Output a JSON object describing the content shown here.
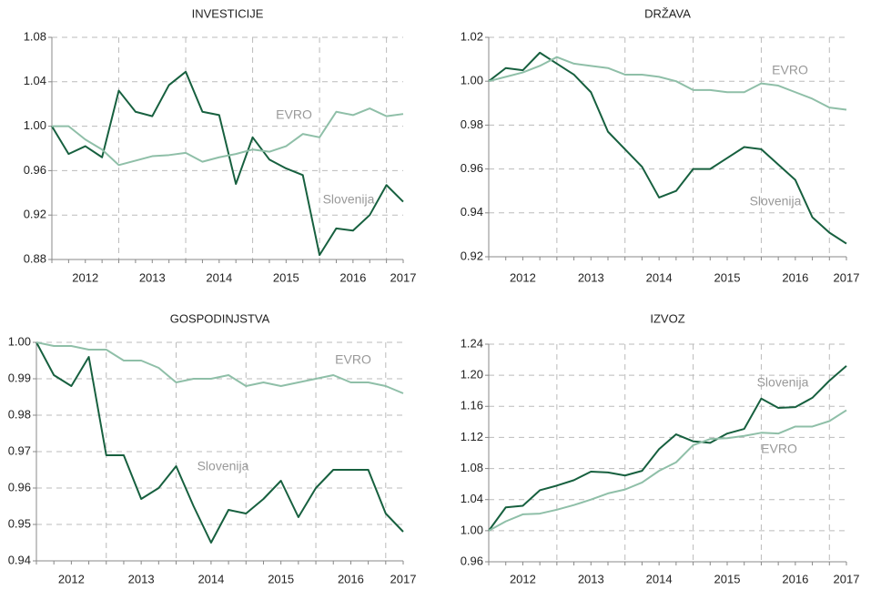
{
  "chart_data": [
    {
      "type": "line",
      "title": "INVESTICIJE",
      "categories": [
        null,
        null,
        "2012",
        null,
        null,
        null,
        "2013",
        null,
        null,
        null,
        "2014",
        null,
        null,
        null,
        "2015",
        null,
        null,
        null,
        "2016",
        null,
        null,
        "2017"
      ],
      "series": [
        {
          "name": "Slovenija",
          "color": "#17603f",
          "values": [
            1.0,
            0.975,
            0.982,
            0.972,
            1.032,
            1.013,
            1.009,
            1.037,
            1.049,
            1.013,
            1.01,
            0.948,
            0.99,
            0.97,
            0.962,
            0.956,
            0.884,
            0.908,
            0.906,
            0.92,
            0.947,
            0.932
          ]
        },
        {
          "name": "EVRO",
          "color": "#8fbfa8",
          "values": [
            1.0,
            1.0,
            0.988,
            0.979,
            0.965,
            0.969,
            0.973,
            0.974,
            0.976,
            0.968,
            0.972,
            0.975,
            0.979,
            0.977,
            0.982,
            0.993,
            0.99,
            1.013,
            1.01,
            1.016,
            1.009,
            1.011
          ]
        }
      ],
      "ylim": [
        0.88,
        1.08
      ],
      "yticks": [
        0.88,
        0.92,
        0.96,
        {
          "value": 1.0,
          "label": "1.00"
        },
        1.04,
        1.08
      ],
      "grid": true
    },
    {
      "type": "line",
      "title": "DRŽAVA",
      "categories": [
        null,
        null,
        "2012",
        null,
        null,
        null,
        "2013",
        null,
        null,
        null,
        "2014",
        null,
        null,
        null,
        "2015",
        null,
        null,
        null,
        "2016",
        null,
        null,
        "2017"
      ],
      "series": [
        {
          "name": "Slovenija",
          "color": "#17603f",
          "values": [
            1.0,
            1.006,
            1.005,
            1.013,
            1.008,
            1.003,
            0.995,
            0.977,
            0.969,
            0.961,
            0.947,
            0.95,
            0.96,
            0.96,
            0.965,
            0.97,
            0.969,
            0.962,
            0.955,
            0.938,
            0.931,
            0.926
          ]
        },
        {
          "name": "EVRO",
          "color": "#8fbfa8",
          "values": [
            1.0,
            1.002,
            1.004,
            1.007,
            1.011,
            1.008,
            1.007,
            1.006,
            1.003,
            1.003,
            1.002,
            1.0,
            0.996,
            0.996,
            0.995,
            0.995,
            0.999,
            0.998,
            0.995,
            0.992,
            0.988,
            0.987
          ]
        }
      ],
      "ylim": [
        0.92,
        1.02
      ],
      "yticks": [
        0.92,
        0.94,
        0.96,
        0.98,
        {
          "value": 1.0,
          "label": "1.00"
        },
        1.02
      ],
      "grid": true
    },
    {
      "type": "line",
      "title": "GOSPODINJSTVA",
      "categories": [
        null,
        null,
        "2012",
        null,
        null,
        null,
        "2013",
        null,
        null,
        null,
        "2014",
        null,
        null,
        null,
        "2015",
        null,
        null,
        null,
        "2016",
        null,
        null,
        "2017"
      ],
      "series": [
        {
          "name": "Slovenija",
          "color": "#17603f",
          "values": [
            1.0,
            0.991,
            0.988,
            0.996,
            0.969,
            0.969,
            0.957,
            0.96,
            0.966,
            0.955,
            0.945,
            0.954,
            0.953,
            0.957,
            0.962,
            0.952,
            0.96,
            0.965,
            0.965,
            0.965,
            0.953,
            0.948
          ]
        },
        {
          "name": "EVRO",
          "color": "#8fbfa8",
          "values": [
            1.0,
            0.999,
            0.999,
            0.998,
            0.998,
            0.995,
            0.995,
            0.993,
            0.989,
            0.99,
            0.99,
            0.991,
            0.988,
            0.989,
            0.988,
            0.989,
            0.99,
            0.991,
            0.989,
            0.989,
            0.988,
            0.986
          ]
        }
      ],
      "ylim": [
        0.94,
        1.0
      ],
      "yticks": [
        0.94,
        0.95,
        0.96,
        0.97,
        0.98,
        0.99,
        {
          "value": 1.0,
          "label": "1.00"
        }
      ],
      "grid": true
    },
    {
      "type": "line",
      "title": "IZVOZ",
      "categories": [
        null,
        null,
        "2012",
        null,
        null,
        null,
        "2013",
        null,
        null,
        null,
        "2014",
        null,
        null,
        null,
        "2015",
        null,
        null,
        null,
        "2016",
        null,
        null,
        "2017"
      ],
      "series": [
        {
          "name": "Slovenija",
          "color": "#17603f",
          "values": [
            1.0,
            1.03,
            1.032,
            1.052,
            1.058,
            1.065,
            1.076,
            1.075,
            1.071,
            1.077,
            1.105,
            1.124,
            1.115,
            1.113,
            1.125,
            1.131,
            1.17,
            1.158,
            1.159,
            1.171,
            1.193,
            1.212
          ]
        },
        {
          "name": "EVRO",
          "color": "#8fbfa8",
          "values": [
            1.0,
            1.012,
            1.021,
            1.022,
            1.027,
            1.033,
            1.04,
            1.048,
            1.053,
            1.062,
            1.077,
            1.088,
            1.11,
            1.118,
            1.119,
            1.122,
            1.126,
            1.125,
            1.134,
            1.134,
            1.141,
            1.155
          ]
        }
      ],
      "ylim": [
        0.96,
        1.24
      ],
      "yticks": [
        0.96,
        {
          "value": 1.0,
          "label": "1.00"
        },
        1.04,
        1.08,
        1.12,
        1.16,
        {
          "value": 1.2,
          "label": "1.20"
        },
        1.24
      ],
      "grid": true
    }
  ]
}
